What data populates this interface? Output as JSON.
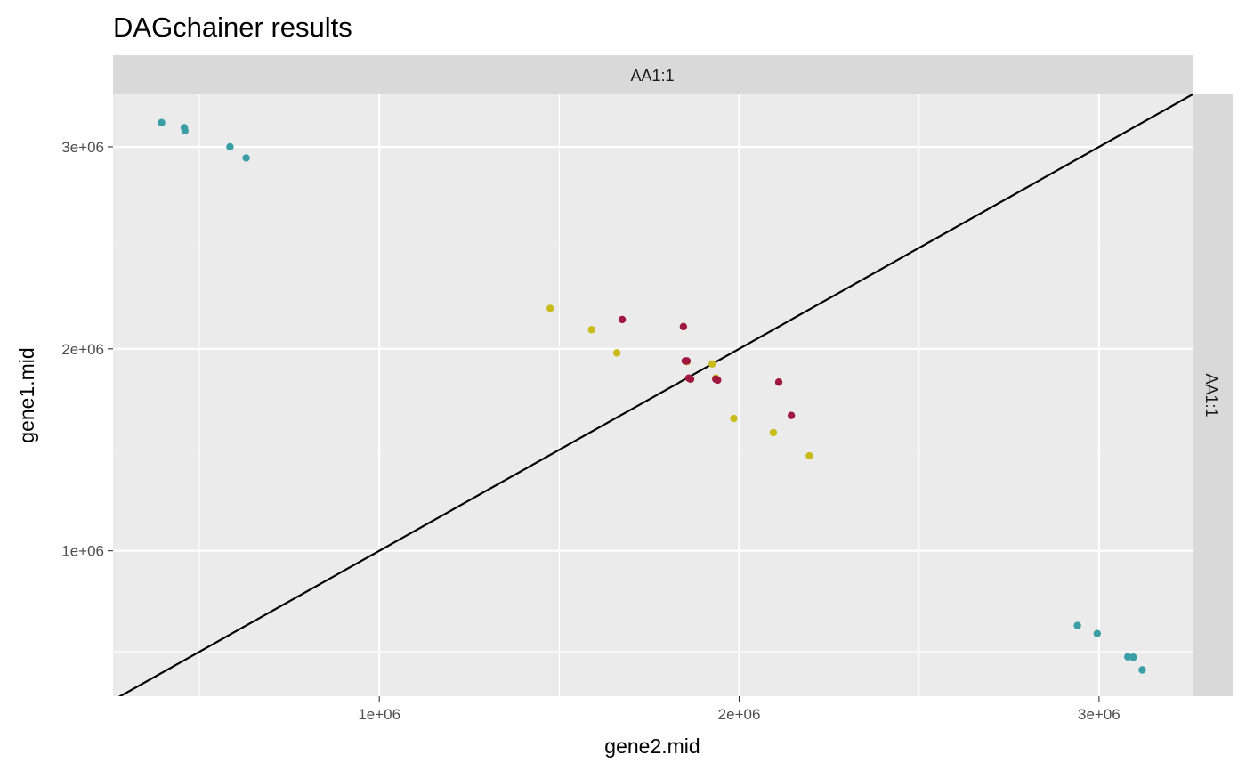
{
  "chart_data": {
    "type": "scatter",
    "title": "DAGchainer results",
    "xlabel": "gene2.mid",
    "ylabel": "gene1.mid",
    "facet_top": "AA1:1",
    "facet_right": "AA1:1",
    "xlim": [
      260000,
      3260000
    ],
    "ylim": [
      280000,
      3260000
    ],
    "x_ticks": [
      {
        "value": 1000000,
        "label": "1e+06"
      },
      {
        "value": 2000000,
        "label": "2e+06"
      },
      {
        "value": 3000000,
        "label": "3e+06"
      }
    ],
    "y_ticks": [
      {
        "value": 1000000,
        "label": "1e+06"
      },
      {
        "value": 2000000,
        "label": "2e+06"
      },
      {
        "value": 3000000,
        "label": "3e+06"
      }
    ],
    "x_minor": [
      500000,
      1500000,
      2500000
    ],
    "y_minor": [
      500000,
      1500000,
      2500000
    ],
    "grid": true,
    "reference_line": {
      "slope": 1,
      "intercept": 0,
      "color": "#000000"
    },
    "colors": {
      "panel_bg": "#ebebeb",
      "strip_bg": "#d9d9d9",
      "grid": "#ffffff"
    },
    "series": [
      {
        "color": "#3a9ea5",
        "points": [
          [
            395000,
            3120000
          ],
          [
            458000,
            3095000
          ],
          [
            460000,
            3080000
          ],
          [
            585000,
            3000000
          ],
          [
            630000,
            2945000
          ],
          [
            2940000,
            630000
          ],
          [
            2995000,
            590000
          ],
          [
            3080000,
            475000
          ],
          [
            3095000,
            473000
          ],
          [
            3120000,
            410000
          ]
        ]
      },
      {
        "color": "#c9bc1a",
        "points": [
          [
            1475000,
            2200000
          ],
          [
            1590000,
            2095000
          ],
          [
            1660000,
            1980000
          ],
          [
            1855000,
            1937000
          ],
          [
            1925000,
            1925000
          ],
          [
            1935000,
            1855000
          ],
          [
            1985000,
            1655000
          ],
          [
            2095000,
            1585000
          ],
          [
            2195000,
            1470000
          ]
        ]
      },
      {
        "color": "#a0173f",
        "points": [
          [
            1675000,
            2145000
          ],
          [
            1845000,
            2110000
          ],
          [
            1850000,
            1940000
          ],
          [
            1855000,
            1940000
          ],
          [
            1860000,
            1855000
          ],
          [
            1865000,
            1850000
          ],
          [
            1935000,
            1850000
          ],
          [
            1940000,
            1845000
          ],
          [
            2110000,
            1835000
          ],
          [
            2145000,
            1670000
          ]
        ]
      }
    ]
  }
}
